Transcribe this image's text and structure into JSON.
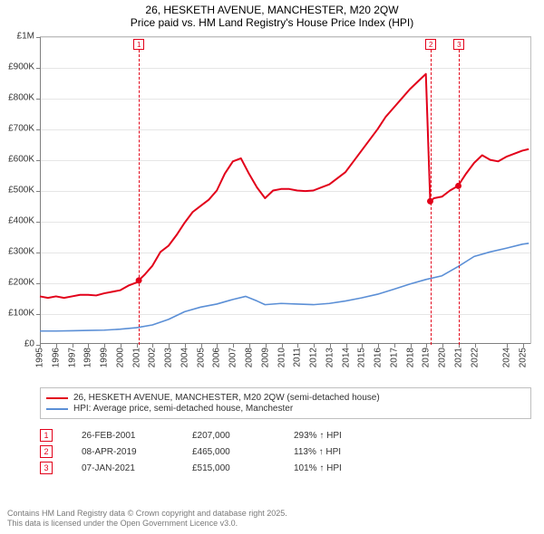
{
  "title": {
    "line1": "26, HESKETH AVENUE, MANCHESTER, M20 2QW",
    "line2": "Price paid vs. HM Land Registry's House Price Index (HPI)"
  },
  "chart": {
    "type": "line",
    "background_color": "#ffffff",
    "grid_color": "#e6e6e6",
    "axis_color": "#808080",
    "border_color": "#bfbfbf",
    "x": {
      "min": 1995,
      "max": 2025.5,
      "ticks": [
        1995,
        1996,
        1997,
        1998,
        1999,
        2000,
        2001,
        2002,
        2003,
        2004,
        2005,
        2006,
        2007,
        2008,
        2009,
        2010,
        2011,
        2012,
        2013,
        2014,
        2015,
        2016,
        2017,
        2018,
        2019,
        2020,
        2021,
        2022,
        2024,
        2025
      ],
      "label_fontsize": 10,
      "label_rotation": -90
    },
    "y": {
      "min": 0,
      "max": 1000000,
      "ticks": [
        0,
        100000,
        200000,
        300000,
        400000,
        500000,
        600000,
        700000,
        800000,
        900000,
        1000000
      ],
      "tick_labels": [
        "£0",
        "£100K",
        "£200K",
        "£300K",
        "£400K",
        "£500K",
        "£600K",
        "£700K",
        "£800K",
        "£900K",
        "£1M"
      ],
      "label_fontsize": 10
    },
    "series": [
      {
        "id": "price_paid",
        "label": "26, HESKETH AVENUE, MANCHESTER, M20 2QW (semi-detached house)",
        "color": "#e2001a",
        "line_width": 2,
        "points": [
          [
            1995.0,
            155000
          ],
          [
            1995.5,
            150000
          ],
          [
            1996.0,
            155000
          ],
          [
            1996.5,
            150000
          ],
          [
            1997.0,
            155000
          ],
          [
            1997.5,
            160000
          ],
          [
            1998.0,
            160000
          ],
          [
            1998.5,
            158000
          ],
          [
            1999.0,
            165000
          ],
          [
            1999.5,
            170000
          ],
          [
            2000.0,
            175000
          ],
          [
            2000.5,
            190000
          ],
          [
            2001.0,
            200000
          ],
          [
            2001.15,
            207000
          ],
          [
            2001.5,
            225000
          ],
          [
            2002.0,
            255000
          ],
          [
            2002.5,
            300000
          ],
          [
            2003.0,
            320000
          ],
          [
            2003.5,
            355000
          ],
          [
            2004.0,
            395000
          ],
          [
            2004.5,
            430000
          ],
          [
            2005.0,
            450000
          ],
          [
            2005.5,
            470000
          ],
          [
            2006.0,
            500000
          ],
          [
            2006.5,
            555000
          ],
          [
            2007.0,
            595000
          ],
          [
            2007.5,
            605000
          ],
          [
            2008.0,
            555000
          ],
          [
            2008.5,
            510000
          ],
          [
            2009.0,
            475000
          ],
          [
            2009.5,
            500000
          ],
          [
            2010.0,
            505000
          ],
          [
            2010.5,
            505000
          ],
          [
            2011.0,
            500000
          ],
          [
            2011.5,
            498000
          ],
          [
            2012.0,
            500000
          ],
          [
            2012.5,
            510000
          ],
          [
            2013.0,
            520000
          ],
          [
            2013.5,
            540000
          ],
          [
            2014.0,
            560000
          ],
          [
            2014.5,
            595000
          ],
          [
            2015.0,
            630000
          ],
          [
            2015.5,
            665000
          ],
          [
            2016.0,
            700000
          ],
          [
            2016.5,
            740000
          ],
          [
            2017.0,
            770000
          ],
          [
            2017.5,
            800000
          ],
          [
            2018.0,
            830000
          ],
          [
            2018.5,
            855000
          ],
          [
            2019.0,
            880000
          ],
          [
            2019.27,
            465000
          ],
          [
            2019.5,
            475000
          ],
          [
            2020.0,
            480000
          ],
          [
            2020.5,
            500000
          ],
          [
            2021.0,
            515000
          ],
          [
            2021.5,
            555000
          ],
          [
            2022.0,
            590000
          ],
          [
            2022.5,
            615000
          ],
          [
            2023.0,
            600000
          ],
          [
            2023.5,
            595000
          ],
          [
            2024.0,
            610000
          ],
          [
            2024.5,
            620000
          ],
          [
            2025.0,
            630000
          ],
          [
            2025.4,
            635000
          ]
        ]
      },
      {
        "id": "hpi",
        "label": "HPI: Average price, semi-detached house, Manchester",
        "color": "#5b8fd6",
        "line_width": 1.6,
        "points": [
          [
            1995.0,
            42000
          ],
          [
            1996.0,
            42000
          ],
          [
            1997.0,
            43000
          ],
          [
            1998.0,
            44000
          ],
          [
            1999.0,
            45000
          ],
          [
            2000.0,
            48000
          ],
          [
            2001.0,
            53000
          ],
          [
            2002.0,
            62000
          ],
          [
            2003.0,
            80000
          ],
          [
            2004.0,
            105000
          ],
          [
            2005.0,
            120000
          ],
          [
            2006.0,
            130000
          ],
          [
            2007.0,
            145000
          ],
          [
            2007.8,
            155000
          ],
          [
            2008.5,
            140000
          ],
          [
            2009.0,
            128000
          ],
          [
            2010.0,
            132000
          ],
          [
            2011.0,
            130000
          ],
          [
            2012.0,
            128000
          ],
          [
            2013.0,
            132000
          ],
          [
            2014.0,
            140000
          ],
          [
            2015.0,
            150000
          ],
          [
            2016.0,
            162000
          ],
          [
            2017.0,
            178000
          ],
          [
            2018.0,
            195000
          ],
          [
            2019.0,
            210000
          ],
          [
            2020.0,
            222000
          ],
          [
            2021.0,
            252000
          ],
          [
            2022.0,
            285000
          ],
          [
            2023.0,
            300000
          ],
          [
            2024.0,
            312000
          ],
          [
            2025.0,
            325000
          ],
          [
            2025.4,
            328000
          ]
        ]
      }
    ],
    "sale_dots": {
      "color": "#e2001a",
      "radius": 3.5,
      "points": [
        [
          2001.15,
          207000
        ],
        [
          2019.27,
          465000
        ],
        [
          2021.02,
          515000
        ]
      ]
    },
    "event_markers": [
      {
        "n": "1",
        "x": 2001.15,
        "color": "#e2001a"
      },
      {
        "n": "2",
        "x": 2019.27,
        "color": "#e2001a"
      },
      {
        "n": "3",
        "x": 2021.02,
        "color": "#e2001a"
      }
    ]
  },
  "legend": {
    "border_color": "#bfbfbf",
    "fontsize": 10
  },
  "events": [
    {
      "n": "1",
      "date": "26-FEB-2001",
      "price": "£207,000",
      "hpi": "293% ↑ HPI",
      "color": "#e2001a"
    },
    {
      "n": "2",
      "date": "08-APR-2019",
      "price": "£465,000",
      "hpi": "113% ↑ HPI",
      "color": "#e2001a"
    },
    {
      "n": "3",
      "date": "07-JAN-2021",
      "price": "£515,000",
      "hpi": "101% ↑ HPI",
      "color": "#e2001a"
    }
  ],
  "footer": {
    "line1": "Contains HM Land Registry data © Crown copyright and database right 2025.",
    "line2": "This data is licensed under the Open Government Licence v3.0.",
    "color": "#7a7a7a"
  }
}
